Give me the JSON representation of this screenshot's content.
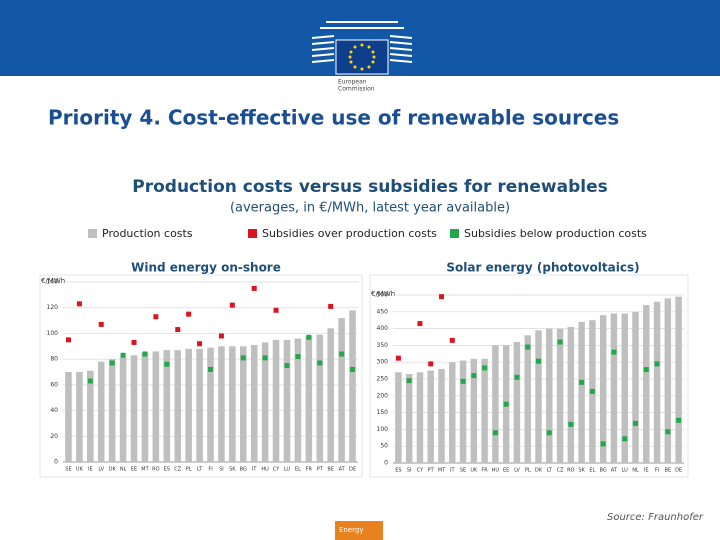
{
  "slide": {
    "title": "Priority 4. Cost-effective use of renewable sources",
    "logo_text": [
      "European",
      "Commission"
    ],
    "source": "Source: Fraunhofer",
    "footer": "Energy"
  },
  "figure": {
    "title": "Production costs versus subsidies for renewables",
    "subtitle": "(averages, in €/MWh, latest year available)"
  },
  "chart_data": [
    {
      "type": "bar",
      "title": "Wind energy on-shore",
      "y_label": "€/MWh",
      "categories": [
        "SE",
        "UK",
        "IE",
        "LV",
        "DK",
        "NL",
        "EE",
        "MT",
        "RO",
        "ES",
        "CZ",
        "PL",
        "LT",
        "FI",
        "SI",
        "SK",
        "BG",
        "IT",
        "HU",
        "CY",
        "LU",
        "EL",
        "FR",
        "PT",
        "BE",
        "AT",
        "DE"
      ],
      "series": [
        {
          "name": "Production costs",
          "color": "#bfbfbf",
          "kind": "bar",
          "values": [
            70,
            70,
            71,
            78,
            80,
            81,
            83,
            85,
            86,
            87,
            87,
            88,
            88,
            89,
            90,
            90,
            90,
            91,
            93,
            95,
            95,
            96,
            98,
            99,
            104,
            112,
            118
          ]
        },
        {
          "name": "Subsidies over production costs",
          "color": "#d9151e",
          "kind": "marker",
          "values": [
            95,
            123,
            null,
            107,
            null,
            null,
            93,
            null,
            113,
            null,
            103,
            115,
            92,
            null,
            98,
            122,
            null,
            135,
            null,
            118,
            null,
            null,
            null,
            null,
            121,
            null,
            null
          ]
        },
        {
          "name": "Subsidies below production costs",
          "color": "#22a84a",
          "kind": "marker",
          "values": [
            null,
            null,
            63,
            null,
            77,
            83,
            null,
            84,
            null,
            76,
            null,
            null,
            null,
            72,
            null,
            null,
            81,
            null,
            81,
            null,
            75,
            82,
            97,
            77,
            null,
            84,
            72
          ]
        }
      ],
      "ylim": [
        0,
        140
      ],
      "yticks": [
        0,
        20,
        40,
        60,
        80,
        100,
        120,
        140
      ],
      "grid": true
    },
    {
      "type": "bar",
      "title": "Solar energy (photovoltaics)",
      "y_label": "€/MWh",
      "categories": [
        "ES",
        "SI",
        "CY",
        "PT",
        "MT",
        "IT",
        "SE",
        "UK",
        "FR",
        "HU",
        "EE",
        "LV",
        "PL",
        "DK",
        "LT",
        "CZ",
        "RO",
        "SK",
        "EL",
        "BG",
        "AT",
        "LU",
        "NL",
        "IE",
        "FI",
        "BE",
        "DE"
      ],
      "series": [
        {
          "color": "#bfbfbf",
          "kind": "bar",
          "values": [
            270,
            265,
            270,
            275,
            280,
            300,
            305,
            310,
            310,
            350,
            350,
            360,
            380,
            395,
            400,
            400,
            405,
            420,
            425,
            440,
            445,
            445,
            450,
            470,
            480,
            490,
            495
          ]
        },
        {
          "color": "#d9151e",
          "kind": "marker",
          "values": [
            312,
            null,
            415,
            295,
            495,
            365,
            null,
            null,
            null,
            null,
            null,
            null,
            null,
            null,
            null,
            null,
            null,
            null,
            null,
            null,
            null,
            null,
            null,
            null,
            null,
            null,
            null
          ]
        },
        {
          "color": "#22a84a",
          "kind": "marker",
          "values": [
            null,
            245,
            null,
            null,
            null,
            null,
            243,
            260,
            283,
            90,
            175,
            255,
            345,
            303,
            90,
            360,
            115,
            240,
            213,
            57,
            330,
            72,
            118,
            278,
            295,
            93,
            127
          ]
        }
      ],
      "ylim": [
        0,
        500
      ],
      "yticks": [
        0,
        50,
        100,
        150,
        200,
        250,
        300,
        350,
        400,
        450,
        500
      ],
      "grid": true
    }
  ]
}
